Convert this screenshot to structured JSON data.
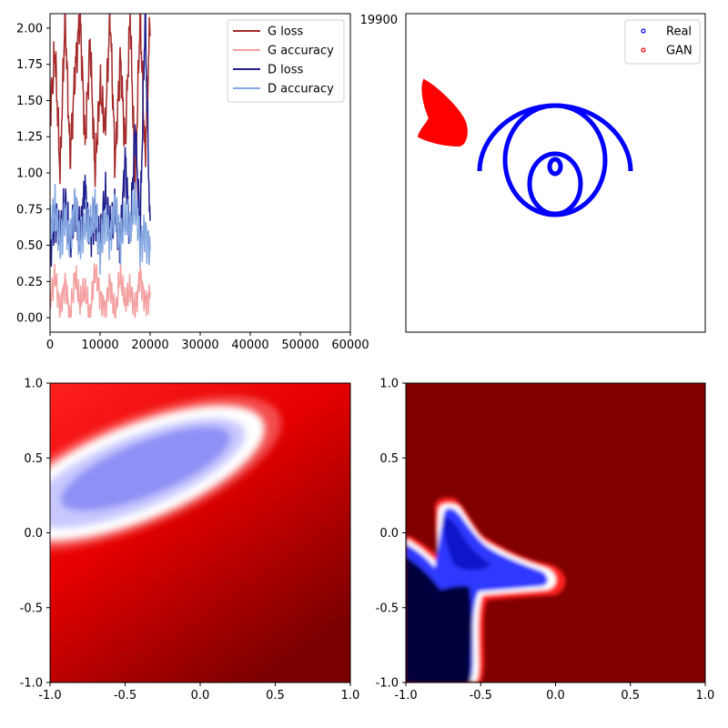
{
  "chart_data": [
    {
      "id": "training-curves",
      "type": "line",
      "title": "",
      "xlabel": "",
      "ylabel": "",
      "xlim": [
        0,
        60000
      ],
      "ylim": [
        -0.1,
        2.1
      ],
      "x_ticks": [
        0,
        10000,
        20000,
        30000,
        40000,
        50000,
        60000
      ],
      "x_tick_labels": [
        "0",
        "10000",
        "20000",
        "30000",
        "40000",
        "50000",
        "60000"
      ],
      "y_ticks": [
        0.0,
        0.25,
        0.5,
        0.75,
        1.0,
        1.25,
        1.5,
        1.75,
        2.0
      ],
      "y_tick_labels": [
        "0.00",
        "0.25",
        "0.50",
        "0.75",
        "1.00",
        "1.25",
        "1.50",
        "1.75",
        "2.00"
      ],
      "legend_position": "top-right",
      "x_max_data": 20000,
      "series": [
        {
          "name": "G loss",
          "color": "#a52a2a",
          "x": [
            0,
            1000,
            2000,
            3000,
            4000,
            5000,
            6000,
            7000,
            8000,
            9000,
            10000,
            11000,
            12000,
            13000,
            14000,
            15000,
            16000,
            17000,
            18000,
            19000,
            20000
          ],
          "values": [
            1.4,
            1.85,
            1.0,
            2.1,
            1.1,
            1.7,
            2.1,
            1.2,
            1.9,
            1.0,
            1.6,
            1.3,
            2.1,
            1.05,
            1.8,
            1.2,
            2.1,
            0.9,
            2.1,
            1.1,
            2.1
          ]
        },
        {
          "name": "G accuracy",
          "color": "#f4a0a0",
          "x": [
            0,
            1000,
            2000,
            3000,
            4000,
            5000,
            6000,
            7000,
            8000,
            9000,
            10000,
            11000,
            12000,
            13000,
            14000,
            15000,
            16000,
            17000,
            18000,
            19000,
            20000
          ],
          "values": [
            0.1,
            0.3,
            0.05,
            0.25,
            0.0,
            0.3,
            0.1,
            0.2,
            0.0,
            0.35,
            0.15,
            0.05,
            0.25,
            0.0,
            0.3,
            0.1,
            0.2,
            0.05,
            0.3,
            0.1,
            0.15
          ]
        },
        {
          "name": "D loss",
          "color": "#1f1f8f",
          "x": [
            0,
            1000,
            2000,
            3000,
            4000,
            5000,
            6000,
            7000,
            8000,
            9000,
            10000,
            11000,
            12000,
            13000,
            14000,
            15000,
            16000,
            17000,
            18000,
            19000,
            20000
          ],
          "values": [
            0.45,
            0.7,
            0.55,
            0.8,
            0.5,
            0.75,
            0.6,
            0.9,
            0.55,
            0.7,
            0.5,
            0.85,
            0.6,
            0.75,
            0.5,
            1.1,
            0.55,
            1.3,
            0.6,
            2.1,
            0.55
          ]
        },
        {
          "name": "D accuracy",
          "color": "#86a8e0",
          "x": [
            0,
            1000,
            2000,
            3000,
            4000,
            5000,
            6000,
            7000,
            8000,
            9000,
            10000,
            11000,
            12000,
            13000,
            14000,
            15000,
            16000,
            17000,
            18000,
            19000,
            20000
          ],
          "values": [
            0.6,
            0.75,
            0.5,
            0.7,
            0.55,
            0.8,
            0.5,
            0.65,
            0.6,
            0.75,
            0.45,
            0.7,
            0.55,
            0.8,
            0.5,
            0.7,
            0.6,
            0.8,
            0.5,
            0.6,
            0.45
          ]
        }
      ]
    },
    {
      "id": "samples",
      "type": "scatter",
      "annotation": "19900",
      "legend_position": "top-right",
      "xlim": [
        -1.1,
        1.1
      ],
      "ylim": [
        -1.1,
        1.1
      ],
      "series": [
        {
          "name": "Real",
          "color": "#0000ff",
          "marker": "circle",
          "shape": "spiral-curve"
        },
        {
          "name": "GAN",
          "color": "#ff0000",
          "marker": "circle",
          "shape": "cluster"
        }
      ]
    },
    {
      "id": "discriminator-contour-left",
      "type": "heatmap",
      "colormap": "seismic",
      "xlim": [
        -1.0,
        1.0
      ],
      "ylim": [
        -1.0,
        1.0
      ],
      "x_ticks": [
        -1.0,
        -0.5,
        0.0,
        0.5,
        1.0
      ],
      "x_tick_labels": [
        "-1.0",
        "-0.5",
        "0.0",
        "0.5",
        "1.0"
      ],
      "y_ticks": [
        -1.0,
        -0.5,
        0.0,
        0.5,
        1.0
      ],
      "y_tick_labels": [
        "-1.0",
        "-0.5",
        "0.0",
        "0.5",
        "1.0"
      ]
    },
    {
      "id": "discriminator-contour-right",
      "type": "heatmap",
      "colormap": "seismic",
      "xlim": [
        -1.0,
        1.0
      ],
      "ylim": [
        -1.0,
        1.0
      ],
      "x_ticks": [
        -1.0,
        -0.5,
        0.0,
        0.5,
        1.0
      ],
      "x_tick_labels": [
        "-1.0",
        "-0.5",
        "0.0",
        "0.5",
        "1.0"
      ],
      "y_ticks": [
        -1.0,
        -0.5,
        0.0,
        0.5,
        1.0
      ],
      "y_tick_labels": [
        "-1.0",
        "-0.5",
        "0.0",
        "0.5",
        "1.0"
      ]
    }
  ]
}
